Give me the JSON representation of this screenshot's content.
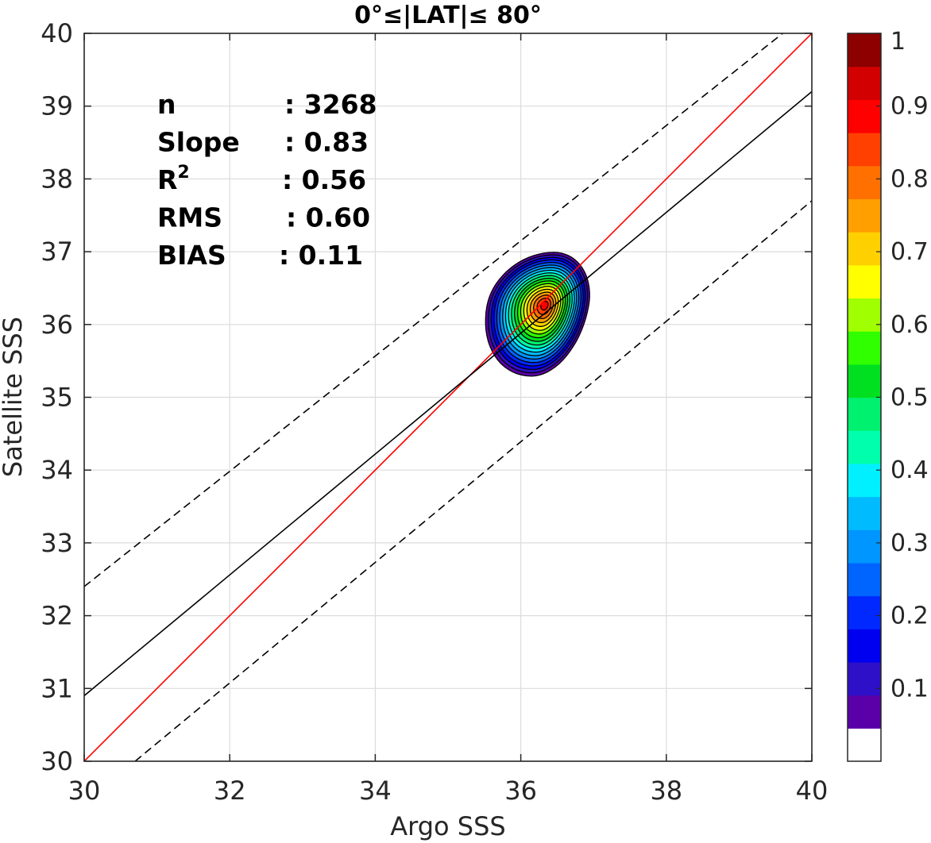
{
  "chart_data": {
    "type": "contour",
    "title": "0°≤|LAT|≤ 80°",
    "xlabel": "Argo SSS",
    "ylabel": "Satellite SSS",
    "xlim": [
      30,
      40
    ],
    "ylim": [
      30,
      40
    ],
    "xticks": [
      30,
      32,
      34,
      36,
      38,
      40
    ],
    "yticks": [
      30,
      31,
      32,
      33,
      34,
      35,
      36,
      37,
      38,
      39,
      40
    ],
    "grid": true,
    "stats": [
      {
        "label": "n",
        "value": ": 3268"
      },
      {
        "label": "Slope",
        "value": ": 0.83"
      },
      {
        "label": "R",
        "sup": "2",
        "value": ": 0.56"
      },
      {
        "label": "RMS",
        "value": ": 0.60"
      },
      {
        "label": "BIAS",
        "value": ": 0.11"
      }
    ],
    "lines": [
      {
        "role": "one-to-one",
        "color": "#ff0000",
        "style": "solid",
        "points": [
          [
            30,
            30
          ],
          [
            40,
            40
          ]
        ]
      },
      {
        "role": "regression-fit",
        "color": "#000000",
        "style": "solid",
        "points": [
          [
            30,
            30.9
          ],
          [
            40,
            39.2
          ]
        ]
      },
      {
        "role": "upper-bound",
        "color": "#000000",
        "style": "dashed",
        "points": [
          [
            30,
            32.4
          ],
          [
            39.6,
            40
          ]
        ]
      },
      {
        "role": "lower-bound",
        "color": "#000000",
        "style": "dashed",
        "points": [
          [
            30.7,
            30
          ],
          [
            40,
            37.7
          ]
        ]
      }
    ],
    "density": {
      "peak": [
        36.32,
        36.25
      ],
      "levels": [
        0.05,
        0.1,
        0.15,
        0.2,
        0.25,
        0.3,
        0.35,
        0.4,
        0.45,
        0.5,
        0.55,
        0.6,
        0.65,
        0.7,
        0.75,
        0.8,
        0.85,
        0.9,
        0.95
      ]
    },
    "colorbar": {
      "ticks": [
        "0.1",
        "0.2",
        "0.3",
        "0.4",
        "0.5",
        "0.6",
        "0.7",
        "0.8",
        "0.9",
        "1"
      ],
      "tick_values": [
        0.1,
        0.2,
        0.3,
        0.4,
        0.5,
        0.6,
        0.7,
        0.8,
        0.9,
        1.0
      ],
      "range": [
        0,
        1
      ],
      "colors": [
        "#ffffff",
        "#5a00a8",
        "#2d10c8",
        "#0000f0",
        "#0028ff",
        "#0064ff",
        "#0096ff",
        "#00bcff",
        "#00f0ff",
        "#00ffaa",
        "#00f070",
        "#00e020",
        "#30ff00",
        "#a0ff00",
        "#ffff00",
        "#ffd000",
        "#ffa000",
        "#ff7000",
        "#ff4000",
        "#ff0000",
        "#d20000",
        "#8c0000"
      ]
    }
  }
}
